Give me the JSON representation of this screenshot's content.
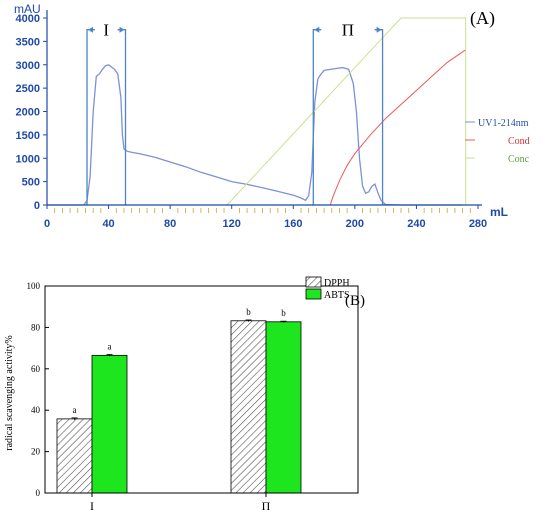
{
  "colors": {
    "uv": "#7f8fd8",
    "cond": "#ea5a5a",
    "conc": "#c8e28a",
    "bracket": "#4a86c8",
    "axisA": "#1f4aa8",
    "tick": "#c9a43a",
    "abts": "#1ee61e",
    "frame": "#000000"
  },
  "chart_data": [
    {
      "type": "line",
      "panel_label": "(A)",
      "ylabel": "mAU",
      "xlabel": "mL",
      "xlim": [
        0,
        280
      ],
      "ylim": [
        0,
        4000
      ],
      "x_ticks": [
        "0",
        "40",
        "80",
        "120",
        "160",
        "200",
        "240",
        "280"
      ],
      "y_ticks": [
        "0",
        "500",
        "1000",
        "1500",
        "2000",
        "2500",
        "3000",
        "3500",
        "4000"
      ],
      "legend": [
        "UV1-214nm",
        "Cond",
        "Conc"
      ],
      "fraction_labels": [
        "I",
        "Π"
      ],
      "fractions": [
        {
          "label": "I",
          "x_start": 26,
          "x_end": 51,
          "y_top": 3750
        },
        {
          "label": "Π",
          "x_start": 173,
          "x_end": 218,
          "y_top": 3750
        }
      ],
      "series": [
        {
          "name": "UV1-214nm",
          "x": [
            0,
            24,
            26,
            28,
            30,
            32,
            34,
            36,
            38,
            40,
            42,
            44,
            46,
            48,
            49,
            50,
            52,
            56,
            60,
            70,
            80,
            90,
            100,
            110,
            120,
            130,
            140,
            150,
            160,
            165,
            168,
            170,
            172,
            174,
            176,
            178,
            180,
            184,
            188,
            192,
            196,
            199,
            201,
            203,
            205,
            207,
            209,
            211,
            213,
            215,
            217,
            220,
            230,
            240,
            250,
            260,
            270
          ],
          "y": [
            0,
            0,
            100,
            600,
            2000,
            2750,
            2800,
            2900,
            2980,
            3000,
            2950,
            2900,
            2800,
            2300,
            1500,
            1200,
            1150,
            1120,
            1100,
            1020,
            920,
            820,
            700,
            600,
            500,
            440,
            370,
            290,
            210,
            150,
            100,
            200,
            700,
            2200,
            2700,
            2800,
            2880,
            2900,
            2920,
            2940,
            2900,
            2600,
            2000,
            1000,
            400,
            250,
            280,
            400,
            450,
            260,
            100,
            10,
            0,
            0,
            0,
            0,
            0
          ]
        },
        {
          "name": "Cond",
          "x": [
            184,
            186,
            190,
            195,
            200,
            210,
            220,
            230,
            240,
            250,
            260,
            272
          ],
          "y": [
            0,
            200,
            520,
            850,
            1100,
            1500,
            1850,
            2150,
            2450,
            2750,
            3050,
            3320
          ]
        },
        {
          "name": "Conc",
          "x": [
            117,
            230,
            272,
            272
          ],
          "y": [
            0,
            4000,
            4000,
            0
          ]
        }
      ]
    },
    {
      "type": "bar",
      "panel_label": "(B)",
      "ylabel": "radical scavenging activity%",
      "xlabel": "",
      "categories": [
        "I",
        "Π"
      ],
      "ylim": [
        0,
        100
      ],
      "y_ticks": [
        "0",
        "20",
        "40",
        "60",
        "80",
        "100"
      ],
      "legend_position": "top-right",
      "series": [
        {
          "name": "DPPH",
          "values": [
            35.8,
            83.2
          ],
          "errors": [
            0.5,
            0.4
          ],
          "labels": [
            "a",
            "b"
          ]
        },
        {
          "name": "ABTS",
          "values": [
            66.5,
            82.7
          ],
          "errors": [
            0.4,
            0.3
          ],
          "labels": [
            "a",
            "b"
          ]
        }
      ]
    }
  ]
}
